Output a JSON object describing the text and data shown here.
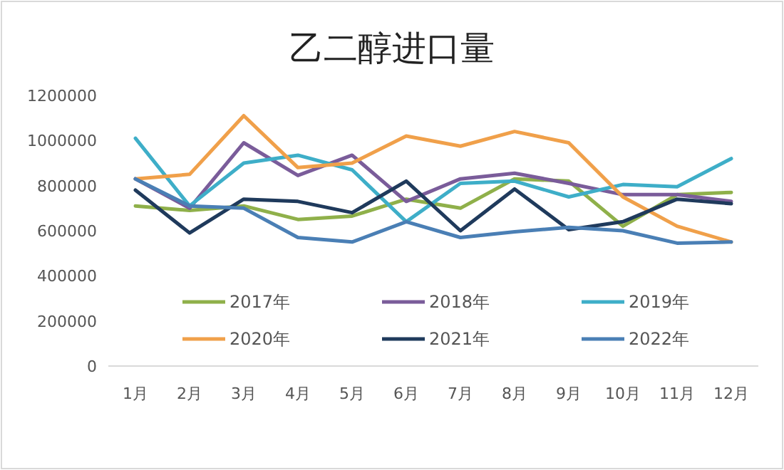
{
  "chart_data": {
    "type": "line",
    "title": "乙二醇进口量",
    "categories": [
      "1月",
      "2月",
      "3月",
      "4月",
      "5月",
      "6月",
      "7月",
      "8月",
      "9月",
      "10月",
      "11月",
      "12月"
    ],
    "ylim": [
      0,
      1200000
    ],
    "yticks": [
      0,
      200000,
      400000,
      600000,
      800000,
      1000000,
      1200000
    ],
    "legend": "bottom",
    "marker": "none",
    "series": [
      {
        "name": "2017年",
        "color": "#8fb04a",
        "values": [
          710000,
          690000,
          710000,
          650000,
          665000,
          740000,
          700000,
          830000,
          820000,
          620000,
          760000,
          770000
        ]
      },
      {
        "name": "2018年",
        "color": "#7a5c9a",
        "values": [
          830000,
          700000,
          990000,
          845000,
          935000,
          730000,
          830000,
          855000,
          810000,
          760000,
          760000,
          730000
        ]
      },
      {
        "name": "2019年",
        "color": "#3eaec8",
        "values": [
          1010000,
          710000,
          900000,
          935000,
          870000,
          640000,
          810000,
          820000,
          750000,
          805000,
          795000,
          920000
        ]
      },
      {
        "name": "2020年",
        "color": "#f0a04a",
        "values": [
          830000,
          850000,
          1110000,
          880000,
          900000,
          1020000,
          975000,
          1040000,
          990000,
          750000,
          620000,
          550000
        ]
      },
      {
        "name": "2021年",
        "color": "#1f3a5c",
        "values": [
          780000,
          590000,
          740000,
          730000,
          680000,
          820000,
          600000,
          785000,
          605000,
          640000,
          740000,
          720000
        ]
      },
      {
        "name": "2022年",
        "color": "#4a7fb5",
        "values": [
          830000,
          710000,
          700000,
          570000,
          550000,
          640000,
          570000,
          595000,
          615000,
          600000,
          545000,
          550000
        ]
      }
    ]
  }
}
